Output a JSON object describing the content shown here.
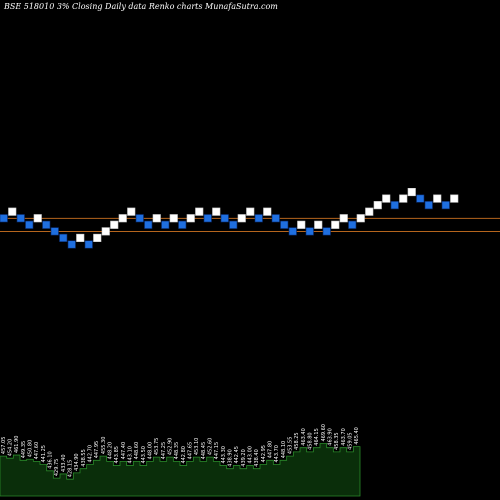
{
  "chart_data": {
    "type": "renko",
    "title": "BSE 518010  3% Closing Daily data Renko charts MunafaSutra.com",
    "colors": {
      "background": "#000000",
      "up_brick": "#ffffff",
      "down_brick": "#1f6fe0",
      "brick_outline": "#0a2a6a",
      "reference_line": "#b5651d",
      "volume_fill": "#0a2e0a",
      "volume_stroke": "#2a8a2a"
    },
    "bricks": [
      {
        "level": 0,
        "dir": "down"
      },
      {
        "level": 1,
        "dir": "up"
      },
      {
        "level": 0,
        "dir": "down"
      },
      {
        "level": -1,
        "dir": "down"
      },
      {
        "level": 0,
        "dir": "up"
      },
      {
        "level": -1,
        "dir": "down"
      },
      {
        "level": -2,
        "dir": "down"
      },
      {
        "level": -3,
        "dir": "down"
      },
      {
        "level": -4,
        "dir": "down"
      },
      {
        "level": -3,
        "dir": "up"
      },
      {
        "level": -4,
        "dir": "down"
      },
      {
        "level": -3,
        "dir": "up"
      },
      {
        "level": -2,
        "dir": "up"
      },
      {
        "level": -1,
        "dir": "up"
      },
      {
        "level": 0,
        "dir": "up"
      },
      {
        "level": 1,
        "dir": "up"
      },
      {
        "level": 0,
        "dir": "down"
      },
      {
        "level": -1,
        "dir": "down"
      },
      {
        "level": 0,
        "dir": "up"
      },
      {
        "level": -1,
        "dir": "down"
      },
      {
        "level": 0,
        "dir": "up"
      },
      {
        "level": -1,
        "dir": "down"
      },
      {
        "level": 0,
        "dir": "up"
      },
      {
        "level": 1,
        "dir": "up"
      },
      {
        "level": 0,
        "dir": "down"
      },
      {
        "level": 1,
        "dir": "up"
      },
      {
        "level": 0,
        "dir": "down"
      },
      {
        "level": -1,
        "dir": "down"
      },
      {
        "level": 0,
        "dir": "up"
      },
      {
        "level": 1,
        "dir": "up"
      },
      {
        "level": 0,
        "dir": "down"
      },
      {
        "level": 1,
        "dir": "up"
      },
      {
        "level": 0,
        "dir": "down"
      },
      {
        "level": -1,
        "dir": "down"
      },
      {
        "level": -2,
        "dir": "down"
      },
      {
        "level": -1,
        "dir": "up"
      },
      {
        "level": -2,
        "dir": "down"
      },
      {
        "level": -1,
        "dir": "up"
      },
      {
        "level": -2,
        "dir": "down"
      },
      {
        "level": -1,
        "dir": "up"
      },
      {
        "level": 0,
        "dir": "up"
      },
      {
        "level": -1,
        "dir": "down"
      },
      {
        "level": 0,
        "dir": "up"
      },
      {
        "level": 1,
        "dir": "up"
      },
      {
        "level": 2,
        "dir": "up"
      },
      {
        "level": 3,
        "dir": "up"
      },
      {
        "level": 2,
        "dir": "down"
      },
      {
        "level": 3,
        "dir": "up"
      },
      {
        "level": 4,
        "dir": "up"
      },
      {
        "level": 3,
        "dir": "down"
      },
      {
        "level": 2,
        "dir": "down"
      },
      {
        "level": 3,
        "dir": "up"
      },
      {
        "level": 2,
        "dir": "down"
      },
      {
        "level": 3,
        "dir": "up"
      }
    ],
    "reference_lines": [
      {
        "level": -0.5
      },
      {
        "level": -2.5
      }
    ],
    "volume": [
      {
        "value": 38,
        "label": "457.05"
      },
      {
        "value": 36,
        "label": "454.20"
      },
      {
        "value": 39,
        "label": "461.90"
      },
      {
        "value": 34,
        "label": "449.35"
      },
      {
        "value": 35,
        "label": "450.80"
      },
      {
        "value": 33,
        "label": "447.60"
      },
      {
        "value": 30,
        "label": "441.25"
      },
      {
        "value": 24,
        "label": "436.10"
      },
      {
        "value": 17,
        "label": "429.75"
      },
      {
        "value": 21,
        "label": "433.40"
      },
      {
        "value": 16,
        "label": "428.15"
      },
      {
        "value": 22,
        "label": "434.90"
      },
      {
        "value": 26,
        "label": "438.55"
      },
      {
        "value": 30,
        "label": "442.70"
      },
      {
        "value": 34,
        "label": "447.95"
      },
      {
        "value": 38,
        "label": "455.30"
      },
      {
        "value": 33,
        "label": "448.20"
      },
      {
        "value": 29,
        "label": "443.85"
      },
      {
        "value": 33,
        "label": "447.40"
      },
      {
        "value": 29,
        "label": "443.10"
      },
      {
        "value": 33,
        "label": "448.60"
      },
      {
        "value": 29,
        "label": "443.50"
      },
      {
        "value": 33,
        "label": "448.00"
      },
      {
        "value": 37,
        "label": "453.75"
      },
      {
        "value": 33,
        "label": "447.25"
      },
      {
        "value": 37,
        "label": "452.90"
      },
      {
        "value": 33,
        "label": "448.35"
      },
      {
        "value": 29,
        "label": "442.80"
      },
      {
        "value": 33,
        "label": "447.65"
      },
      {
        "value": 37,
        "label": "453.10"
      },
      {
        "value": 33,
        "label": "448.45"
      },
      {
        "value": 37,
        "label": "452.60"
      },
      {
        "value": 33,
        "label": "447.15"
      },
      {
        "value": 29,
        "label": "443.30"
      },
      {
        "value": 26,
        "label": "438.90"
      },
      {
        "value": 29,
        "label": "442.45"
      },
      {
        "value": 26,
        "label": "439.20"
      },
      {
        "value": 29,
        "label": "443.00"
      },
      {
        "value": 26,
        "label": "438.40"
      },
      {
        "value": 30,
        "label": "442.95"
      },
      {
        "value": 34,
        "label": "447.80"
      },
      {
        "value": 30,
        "label": "443.70"
      },
      {
        "value": 34,
        "label": "448.10"
      },
      {
        "value": 38,
        "label": "453.55"
      },
      {
        "value": 42,
        "label": "458.25"
      },
      {
        "value": 46,
        "label": "463.40"
      },
      {
        "value": 42,
        "label": "458.80"
      },
      {
        "value": 46,
        "label": "464.15"
      },
      {
        "value": 50,
        "label": "469.60"
      },
      {
        "value": 46,
        "label": "463.90"
      },
      {
        "value": 42,
        "label": "458.35"
      },
      {
        "value": 46,
        "label": "463.70"
      },
      {
        "value": 42,
        "label": "459.05"
      },
      {
        "value": 47,
        "label": "465.40"
      }
    ]
  }
}
